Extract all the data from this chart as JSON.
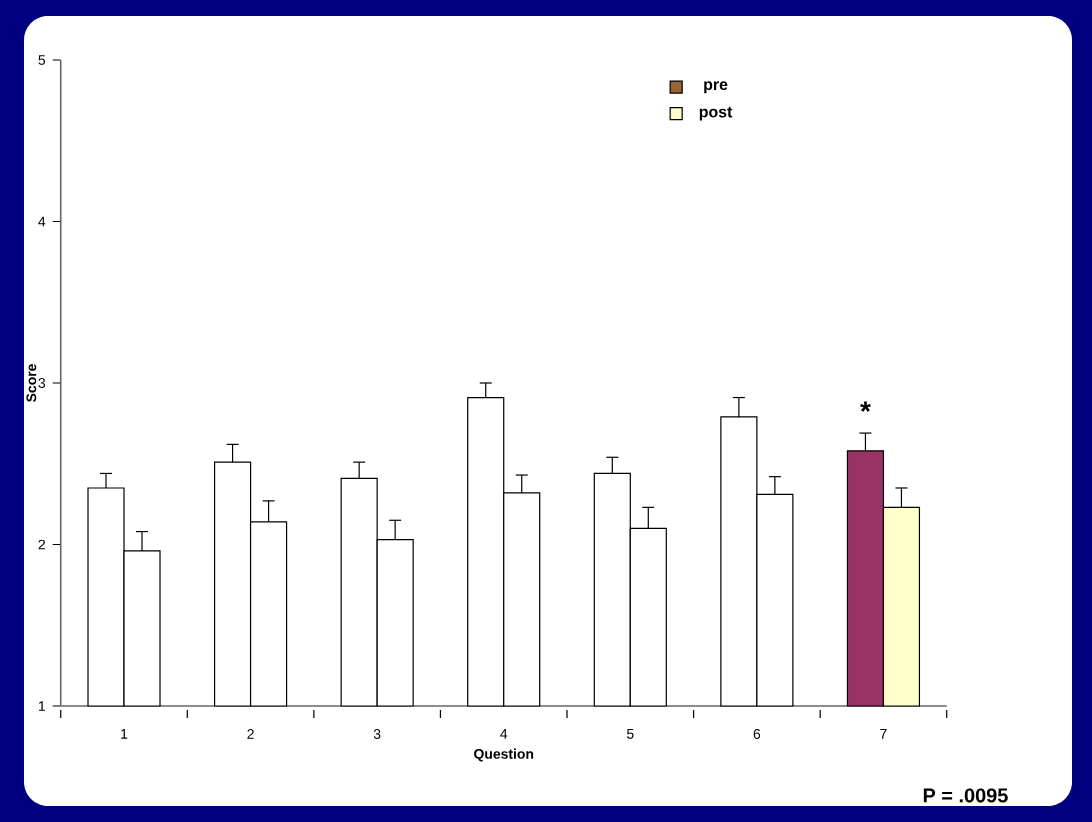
{
  "chart_data": {
    "type": "bar",
    "xlabel": "Question",
    "ylabel": "Score",
    "categories": [
      "1",
      "2",
      "3",
      "4",
      "5",
      "6",
      "7"
    ],
    "series": [
      {
        "name": "pre",
        "color": "#996633",
        "colors": [
          "#ffffff",
          "#ffffff",
          "#ffffff",
          "#ffffff",
          "#ffffff",
          "#ffffff",
          "#993366"
        ],
        "values": [
          2.35,
          2.51,
          2.41,
          2.91,
          2.44,
          2.79,
          2.58
        ],
        "errors": [
          [
            2.35,
            2.44
          ],
          [
            2.51,
            2.62
          ],
          [
            2.41,
            2.51
          ],
          [
            2.91,
            3.0
          ],
          [
            2.44,
            2.54
          ],
          [
            2.79,
            2.91
          ],
          [
            2.58,
            2.69
          ]
        ]
      },
      {
        "name": "post",
        "color": "#ffffcc",
        "colors": [
          "#ffffff",
          "#ffffff",
          "#ffffff",
          "#ffffff",
          "#ffffff",
          "#ffffff",
          "#ffffcc"
        ],
        "values": [
          1.96,
          2.14,
          2.03,
          2.32,
          2.1,
          2.31,
          2.23
        ],
        "errors": [
          [
            1.96,
            2.08
          ],
          [
            2.14,
            2.27
          ],
          [
            2.03,
            2.15
          ],
          [
            2.32,
            2.43
          ],
          [
            2.1,
            2.23
          ],
          [
            2.31,
            2.42
          ],
          [
            2.23,
            2.35
          ]
        ]
      }
    ],
    "ylim": [
      1,
      5
    ],
    "yticks": [
      1,
      2,
      3,
      4,
      5
    ],
    "grid": false,
    "legend": "top right",
    "annotations": [
      "*",
      "P = .0095"
    ]
  }
}
